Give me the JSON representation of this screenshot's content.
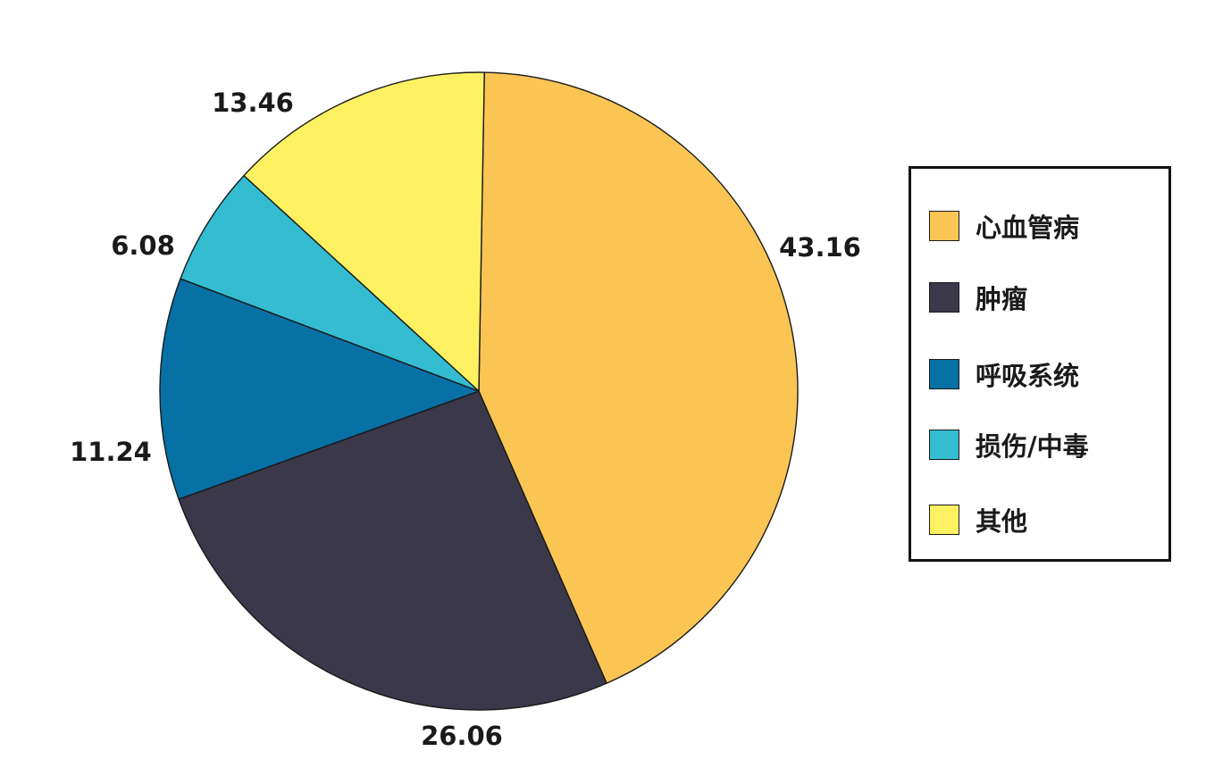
{
  "chart_data": {
    "type": "pie",
    "title": "",
    "start_angle_deg": 0,
    "direction": "clockwise",
    "grid": false,
    "legend_position": "right",
    "slices": [
      {
        "label": "心血管病",
        "value": 43.16,
        "value_label": "43.16",
        "color": "#fbc554"
      },
      {
        "label": "肿瘤",
        "value": 26.06,
        "value_label": "26.06",
        "color": "#3a3849"
      },
      {
        "label": "呼吸系统",
        "value": 11.24,
        "value_label": "11.24",
        "color": "#0770a5"
      },
      {
        "label": "损伤/中毒",
        "value": 6.08,
        "value_label": "6.08",
        "color": "#34bcd1"
      },
      {
        "label": "其他",
        "value": 13.46,
        "value_label": "13.46",
        "color": "#fdf161"
      }
    ]
  }
}
